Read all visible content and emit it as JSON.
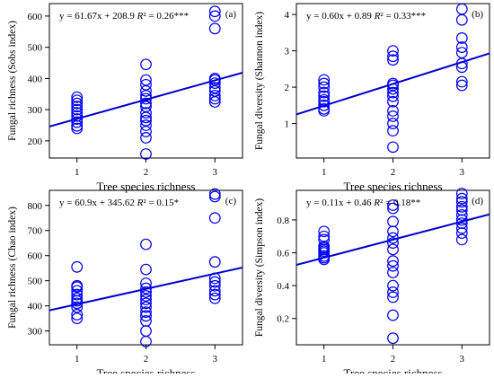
{
  "chart_data": [
    {
      "type": "scatter",
      "panel_label": "(a)",
      "equation": "y = 61.67x + 208.9 R² = 0.26***",
      "xlabel": "Tree species richness",
      "ylabel": "Fungal richness (Sobs index)",
      "xlim": [
        0.6,
        3.4
      ],
      "ylim": [
        145,
        640
      ],
      "xticks": [
        1,
        2,
        3
      ],
      "yticks": [
        200,
        300,
        400,
        500,
        600
      ],
      "yticklabels": [
        "200",
        "300",
        "400",
        "500",
        "600"
      ],
      "line": {
        "slope": 61.67,
        "intercept": 208.9
      },
      "point_color": "#0000ff",
      "line_color": "#0000cd",
      "points": [
        {
          "x": 1,
          "y": 240
        },
        {
          "x": 1,
          "y": 248
        },
        {
          "x": 1,
          "y": 260
        },
        {
          "x": 1,
          "y": 270
        },
        {
          "x": 1,
          "y": 280
        },
        {
          "x": 1,
          "y": 290
        },
        {
          "x": 1,
          "y": 300
        },
        {
          "x": 1,
          "y": 310
        },
        {
          "x": 1,
          "y": 320
        },
        {
          "x": 1,
          "y": 330
        },
        {
          "x": 1,
          "y": 340
        },
        {
          "x": 2,
          "y": 158
        },
        {
          "x": 2,
          "y": 210
        },
        {
          "x": 2,
          "y": 230
        },
        {
          "x": 2,
          "y": 250
        },
        {
          "x": 2,
          "y": 265
        },
        {
          "x": 2,
          "y": 275
        },
        {
          "x": 2,
          "y": 290
        },
        {
          "x": 2,
          "y": 310
        },
        {
          "x": 2,
          "y": 320
        },
        {
          "x": 2,
          "y": 335
        },
        {
          "x": 2,
          "y": 345
        },
        {
          "x": 2,
          "y": 360
        },
        {
          "x": 2,
          "y": 380
        },
        {
          "x": 2,
          "y": 395
        },
        {
          "x": 2,
          "y": 445
        },
        {
          "x": 3,
          "y": 325
        },
        {
          "x": 3,
          "y": 335
        },
        {
          "x": 3,
          "y": 345
        },
        {
          "x": 3,
          "y": 360
        },
        {
          "x": 3,
          "y": 370
        },
        {
          "x": 3,
          "y": 385
        },
        {
          "x": 3,
          "y": 395
        },
        {
          "x": 3,
          "y": 400
        },
        {
          "x": 3,
          "y": 560
        },
        {
          "x": 3,
          "y": 600
        },
        {
          "x": 3,
          "y": 615
        }
      ]
    },
    {
      "type": "scatter",
      "panel_label": "(b)",
      "equation": "y = 0.60x + 0.89 R² = 0.33***",
      "xlabel": "Tree species richness",
      "ylabel": "Fungal diversity (Shannon index)",
      "xlim": [
        0.6,
        3.4
      ],
      "ylim": [
        0.05,
        4.3
      ],
      "xticks": [
        1,
        2,
        3
      ],
      "yticks": [
        1,
        2,
        3,
        4
      ],
      "yticklabels": [
        "1",
        "2",
        "3",
        "4"
      ],
      "line": {
        "slope": 0.6,
        "intercept": 0.89
      },
      "point_color": "#0000ff",
      "line_color": "#0000cd",
      "points": [
        {
          "x": 1,
          "y": 1.35
        },
        {
          "x": 1,
          "y": 1.4
        },
        {
          "x": 1,
          "y": 1.5
        },
        {
          "x": 1,
          "y": 1.6
        },
        {
          "x": 1,
          "y": 1.65
        },
        {
          "x": 1,
          "y": 1.75
        },
        {
          "x": 1,
          "y": 1.85
        },
        {
          "x": 1,
          "y": 2.0
        },
        {
          "x": 1,
          "y": 2.1
        },
        {
          "x": 1,
          "y": 2.2
        },
        {
          "x": 2,
          "y": 0.35
        },
        {
          "x": 2,
          "y": 0.8
        },
        {
          "x": 2,
          "y": 1.0
        },
        {
          "x": 2,
          "y": 1.2
        },
        {
          "x": 2,
          "y": 1.35
        },
        {
          "x": 2,
          "y": 1.6
        },
        {
          "x": 2,
          "y": 1.75
        },
        {
          "x": 2,
          "y": 1.85
        },
        {
          "x": 2,
          "y": 1.95
        },
        {
          "x": 2,
          "y": 2.05
        },
        {
          "x": 2,
          "y": 2.1
        },
        {
          "x": 2,
          "y": 2.75
        },
        {
          "x": 2,
          "y": 2.85
        },
        {
          "x": 2,
          "y": 3.0
        },
        {
          "x": 3,
          "y": 2.05
        },
        {
          "x": 3,
          "y": 2.15
        },
        {
          "x": 3,
          "y": 2.55
        },
        {
          "x": 3,
          "y": 2.65
        },
        {
          "x": 3,
          "y": 2.95
        },
        {
          "x": 3,
          "y": 3.1
        },
        {
          "x": 3,
          "y": 3.35
        },
        {
          "x": 3,
          "y": 3.85
        },
        {
          "x": 3,
          "y": 4.15
        }
      ]
    },
    {
      "type": "scatter",
      "panel_label": "(c)",
      "equation": "y = 60.9x + 345.62 R² = 0.15*",
      "xlabel": "Tree species richness",
      "ylabel": "Fungal richness (Chao index)",
      "xlim": [
        0.6,
        3.4
      ],
      "ylim": [
        245,
        860
      ],
      "xticks": [
        1,
        2,
        3
      ],
      "yticks": [
        300,
        400,
        500,
        600,
        700,
        800
      ],
      "yticklabels": [
        "300",
        "400",
        "500",
        "600",
        "700",
        "800"
      ],
      "line": {
        "slope": 60.9,
        "intercept": 345.62
      },
      "point_color": "#0000ff",
      "line_color": "#0000cd",
      "points": [
        {
          "x": 1,
          "y": 350
        },
        {
          "x": 1,
          "y": 365
        },
        {
          "x": 1,
          "y": 395
        },
        {
          "x": 1,
          "y": 410
        },
        {
          "x": 1,
          "y": 420
        },
        {
          "x": 1,
          "y": 430
        },
        {
          "x": 1,
          "y": 445
        },
        {
          "x": 1,
          "y": 460
        },
        {
          "x": 1,
          "y": 475
        },
        {
          "x": 1,
          "y": 480
        },
        {
          "x": 1,
          "y": 555
        },
        {
          "x": 2,
          "y": 258
        },
        {
          "x": 2,
          "y": 300
        },
        {
          "x": 2,
          "y": 340
        },
        {
          "x": 2,
          "y": 360
        },
        {
          "x": 2,
          "y": 375
        },
        {
          "x": 2,
          "y": 395
        },
        {
          "x": 2,
          "y": 410
        },
        {
          "x": 2,
          "y": 425
        },
        {
          "x": 2,
          "y": 440
        },
        {
          "x": 2,
          "y": 455
        },
        {
          "x": 2,
          "y": 470
        },
        {
          "x": 2,
          "y": 490
        },
        {
          "x": 2,
          "y": 545
        },
        {
          "x": 2,
          "y": 645
        },
        {
          "x": 3,
          "y": 430
        },
        {
          "x": 3,
          "y": 445
        },
        {
          "x": 3,
          "y": 460
        },
        {
          "x": 3,
          "y": 480
        },
        {
          "x": 3,
          "y": 495
        },
        {
          "x": 3,
          "y": 510
        },
        {
          "x": 3,
          "y": 575
        },
        {
          "x": 3,
          "y": 750
        },
        {
          "x": 3,
          "y": 835
        },
        {
          "x": 3,
          "y": 845
        }
      ]
    },
    {
      "type": "scatter",
      "panel_label": "(d)",
      "equation": "y = 0.11x + 0.46 R² = 0.18**",
      "xlabel": "Tree species richness",
      "ylabel": "Fungal diversity (Simpson index)",
      "xlim": [
        0.6,
        3.4
      ],
      "ylim": [
        0.04,
        0.98
      ],
      "xticks": [
        1,
        2,
        3
      ],
      "yticks": [
        0.2,
        0.4,
        0.6,
        0.8
      ],
      "yticklabels": [
        "0.2",
        "0.4",
        "0.6",
        "0.8"
      ],
      "line": {
        "slope": 0.11,
        "intercept": 0.46
      },
      "point_color": "#0000ff",
      "line_color": "#0000cd",
      "points": [
        {
          "x": 1,
          "y": 0.56
        },
        {
          "x": 1,
          "y": 0.57
        },
        {
          "x": 1,
          "y": 0.58
        },
        {
          "x": 1,
          "y": 0.6
        },
        {
          "x": 1,
          "y": 0.61
        },
        {
          "x": 1,
          "y": 0.62
        },
        {
          "x": 1,
          "y": 0.63
        },
        {
          "x": 1,
          "y": 0.64
        },
        {
          "x": 1,
          "y": 0.68
        },
        {
          "x": 1,
          "y": 0.7
        },
        {
          "x": 1,
          "y": 0.73
        },
        {
          "x": 2,
          "y": 0.08
        },
        {
          "x": 2,
          "y": 0.22
        },
        {
          "x": 2,
          "y": 0.33
        },
        {
          "x": 2,
          "y": 0.36
        },
        {
          "x": 2,
          "y": 0.4
        },
        {
          "x": 2,
          "y": 0.48
        },
        {
          "x": 2,
          "y": 0.52
        },
        {
          "x": 2,
          "y": 0.55
        },
        {
          "x": 2,
          "y": 0.62
        },
        {
          "x": 2,
          "y": 0.66
        },
        {
          "x": 2,
          "y": 0.69
        },
        {
          "x": 2,
          "y": 0.73
        },
        {
          "x": 2,
          "y": 0.79
        },
        {
          "x": 2,
          "y": 0.87
        },
        {
          "x": 2,
          "y": 0.89
        },
        {
          "x": 3,
          "y": 0.68
        },
        {
          "x": 3,
          "y": 0.72
        },
        {
          "x": 3,
          "y": 0.75
        },
        {
          "x": 3,
          "y": 0.78
        },
        {
          "x": 3,
          "y": 0.8
        },
        {
          "x": 3,
          "y": 0.83
        },
        {
          "x": 3,
          "y": 0.86
        },
        {
          "x": 3,
          "y": 0.88
        },
        {
          "x": 3,
          "y": 0.91
        },
        {
          "x": 3,
          "y": 0.93
        },
        {
          "x": 3,
          "y": 0.96
        }
      ]
    }
  ]
}
